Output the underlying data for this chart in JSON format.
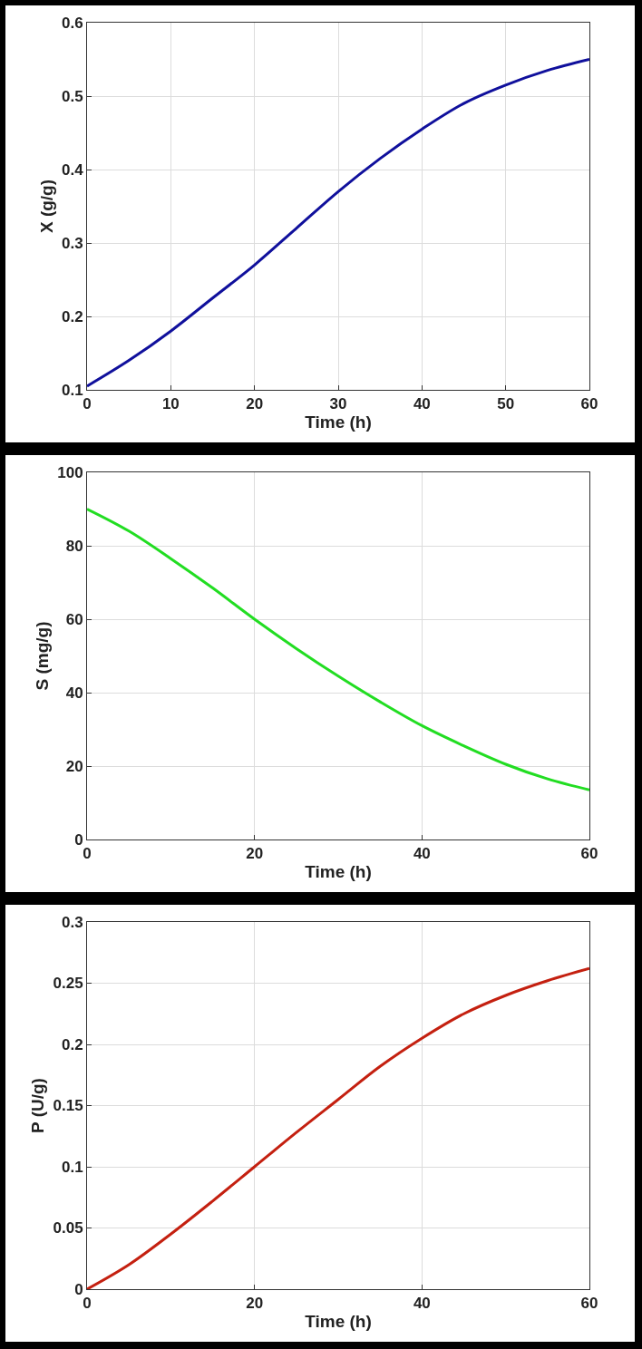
{
  "chart_data": [
    {
      "type": "line",
      "xlabel": "Time (h)",
      "ylabel": "X (g/g)",
      "x": [
        0,
        5,
        10,
        15,
        20,
        25,
        30,
        35,
        40,
        45,
        50,
        55,
        60
      ],
      "xlim": [
        0,
        60
      ],
      "xticks": [
        0,
        10,
        20,
        30,
        40,
        50,
        60
      ],
      "ylim": [
        0.1,
        0.6
      ],
      "yticks": [
        0.1,
        0.2,
        0.3,
        0.4,
        0.5,
        0.6
      ],
      "grid": true,
      "series": [
        {
          "color": "#10109c",
          "values": [
            0.105,
            0.14,
            0.18,
            0.225,
            0.27,
            0.32,
            0.37,
            0.415,
            0.455,
            0.49,
            0.515,
            0.535,
            0.55
          ]
        }
      ]
    },
    {
      "type": "line",
      "xlabel": "Time (h)",
      "ylabel": "S (mg/g)",
      "x": [
        0,
        5,
        10,
        15,
        20,
        25,
        30,
        35,
        40,
        45,
        50,
        55,
        60
      ],
      "xlim": [
        0,
        60
      ],
      "xticks": [
        0,
        20,
        40,
        60
      ],
      "ylim": [
        0,
        100
      ],
      "yticks": [
        0,
        20,
        40,
        60,
        80,
        100
      ],
      "grid": true,
      "series": [
        {
          "color": "#22dd22",
          "values": [
            90,
            84,
            76.5,
            68.5,
            60,
            52,
            44.5,
            37.5,
            31,
            25.5,
            20.5,
            16.5,
            13.5
          ]
        }
      ]
    },
    {
      "type": "line",
      "xlabel": "Time (h)",
      "ylabel": "P (U/g)",
      "x": [
        0,
        5,
        10,
        15,
        20,
        25,
        30,
        35,
        40,
        45,
        50,
        55,
        60
      ],
      "xlim": [
        0,
        60
      ],
      "xticks": [
        0,
        20,
        40,
        60
      ],
      "ylim": [
        0,
        0.3
      ],
      "yticks": [
        0,
        0.05,
        0.1,
        0.15,
        0.2,
        0.25,
        0.3
      ],
      "grid": true,
      "series": [
        {
          "color": "#c42010",
          "values": [
            0,
            0.02,
            0.045,
            0.072,
            0.1,
            0.128,
            0.155,
            0.182,
            0.205,
            0.225,
            0.24,
            0.252,
            0.262
          ]
        }
      ]
    }
  ]
}
